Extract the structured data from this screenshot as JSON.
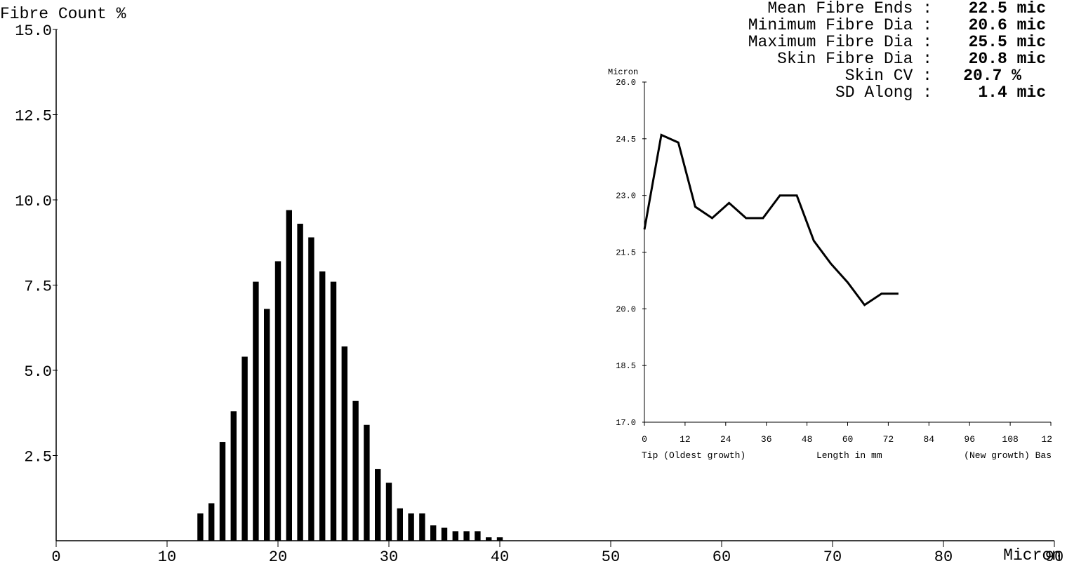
{
  "chart_data": [
    {
      "type": "bar",
      "ylabel": "Fibre Count %",
      "xlabel": "Micron",
      "xlim": [
        0,
        90
      ],
      "ylim": [
        0,
        15
      ],
      "x_ticks": [
        0,
        10,
        20,
        30,
        40,
        50,
        60,
        70,
        80,
        90
      ],
      "y_ticks": [
        "2.5",
        "5.0",
        "7.5",
        "10.0",
        "12.5",
        "15.0"
      ],
      "x": [
        13,
        14,
        15,
        16,
        17,
        18,
        19,
        20,
        21,
        22,
        23,
        24,
        25,
        26,
        27,
        28,
        29,
        30,
        31,
        32,
        33,
        34,
        35,
        36,
        37,
        38,
        39,
        40
      ],
      "values": [
        0.8,
        1.1,
        2.9,
        3.8,
        5.4,
        7.6,
        6.8,
        8.2,
        9.7,
        9.3,
        8.9,
        7.9,
        7.6,
        5.7,
        4.1,
        3.4,
        2.1,
        1.7,
        0.95,
        0.8,
        0.8,
        0.45,
        0.38,
        0.28,
        0.28,
        0.28,
        0.1,
        0.1
      ]
    },
    {
      "type": "line",
      "ylabel": "Micron",
      "xlabel": "Length in mm",
      "x_label_left": "Tip (Oldest growth)",
      "x_label_right": "(New growth) Bas",
      "xlim": [
        0,
        120
      ],
      "ylim": [
        17.0,
        26.0
      ],
      "x_ticks": [
        "0",
        "12",
        "24",
        "36",
        "48",
        "60",
        "72",
        "84",
        "96",
        "108",
        "12"
      ],
      "y_ticks": [
        "17.0",
        "18.5",
        "20.0",
        "21.5",
        "23.0",
        "24.5",
        "26.0"
      ],
      "x": [
        0,
        5,
        10,
        15,
        20,
        25,
        30,
        35,
        40,
        45,
        50,
        55,
        60,
        65,
        70,
        75
      ],
      "values": [
        22.1,
        24.6,
        24.4,
        22.7,
        22.4,
        22.8,
        22.4,
        22.4,
        23.0,
        23.0,
        21.8,
        21.2,
        20.7,
        20.1,
        20.4,
        20.4
      ]
    }
  ],
  "stats": [
    {
      "label": "Mean Fibre Ends :",
      "value": "22.5 mic"
    },
    {
      "label": "Minimum Fibre Dia :",
      "value": "20.6 mic"
    },
    {
      "label": "Maximum Fibre Dia :",
      "value": "25.5 mic"
    },
    {
      "label": "Skin Fibre Dia :",
      "value": "20.8 mic"
    },
    {
      "label": "Skin CV :",
      "value": "20.7 %"
    },
    {
      "label": "SD Along :",
      "value": "1.4 mic"
    }
  ]
}
